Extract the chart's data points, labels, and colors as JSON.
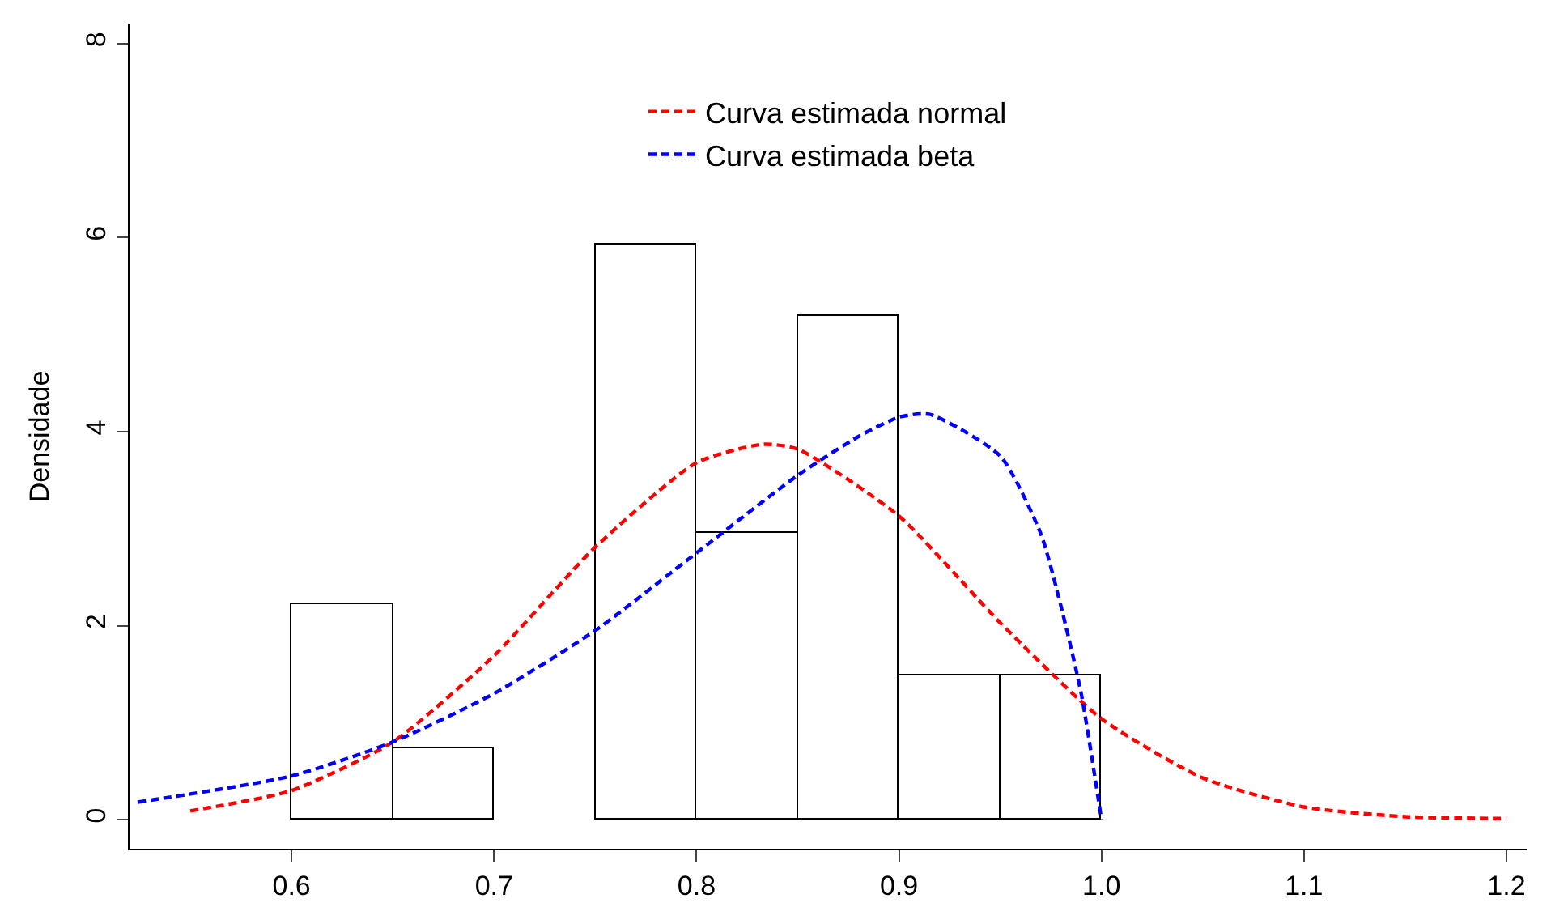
{
  "chart_data": {
    "type": "histogram",
    "ylabel": "Densidade",
    "bins": [
      0.6,
      0.65,
      0.7,
      0.75,
      0.8,
      0.85,
      0.9,
      0.95,
      1.0
    ],
    "values": [
      2.22,
      0.74,
      0,
      5.93,
      2.96,
      5.19,
      1.48,
      1.48
    ],
    "color": "#ffffff",
    "series": [
      {
        "type": "line",
        "name": "Curva estimada normal",
        "color": "#ff0000",
        "line_style": "dashed",
        "x": [
          0.55,
          0.6,
          0.65,
          0.7,
          0.75,
          0.8,
          0.833,
          0.85,
          0.9,
          0.95,
          1.0,
          1.05,
          1.1,
          1.15,
          1.2
        ],
        "values": [
          0.09,
          0.3,
          0.8,
          1.69,
          2.81,
          3.68,
          3.87,
          3.82,
          3.13,
          2.03,
          1.04,
          0.43,
          0.13,
          0.03,
          0.01
        ]
      },
      {
        "type": "line",
        "name": "Curva estimada beta",
        "color": "#0000ff",
        "line_style": "dashed",
        "x": [
          0.524,
          0.6,
          0.65,
          0.7,
          0.75,
          0.8,
          0.85,
          0.88,
          0.9,
          0.915,
          0.95,
          0.97,
          0.98,
          0.99,
          1.0
        ],
        "values": [
          0.18,
          0.45,
          0.8,
          1.3,
          1.95,
          2.75,
          3.55,
          3.95,
          4.15,
          4.18,
          3.75,
          2.95,
          2.2,
          1.3,
          0
        ]
      }
    ],
    "xlim": [
      0.52,
      1.21
    ],
    "xticks": [
      0.6,
      0.7,
      0.8,
      0.9,
      {
        "value": 1,
        "label": "1.0"
      },
      1.1,
      1.2
    ],
    "ylim": [
      -0.3,
      8.2
    ],
    "yticks": [
      0,
      2,
      4,
      6,
      8
    ],
    "legend": "top"
  }
}
